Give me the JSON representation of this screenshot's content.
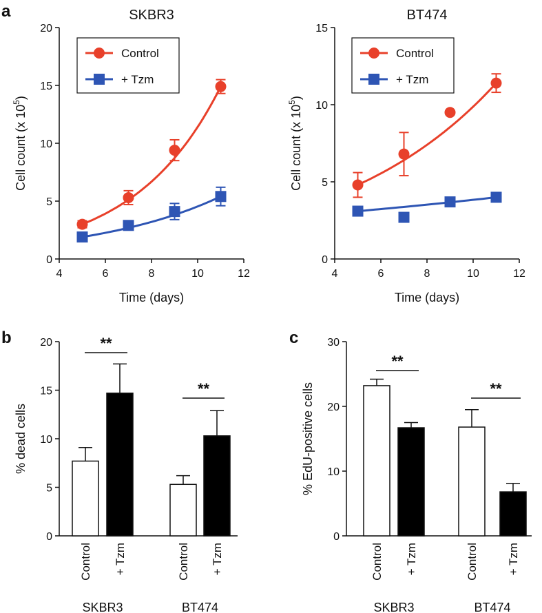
{
  "panel_labels": {
    "a": "a",
    "b": "b",
    "c": "c"
  },
  "colors": {
    "control": "#e8402a",
    "tzm": "#2e55b4",
    "axis": "#111111"
  },
  "chart_data": [
    {
      "id": "a1",
      "type": "line",
      "title": "SKBR3",
      "xlabel": "Time (days)",
      "ylabel": "Cell count (x 10",
      "ylabel_sup": "5",
      "ylabel_end": ")",
      "xlim": [
        4,
        12
      ],
      "ylim": [
        0,
        20
      ],
      "xticks": [
        4,
        6,
        8,
        10,
        12
      ],
      "yticks": [
        0,
        5,
        10,
        15,
        20
      ],
      "series": [
        {
          "name": "Control",
          "marker": "circle",
          "x": [
            5,
            7,
            9,
            11
          ],
          "y": [
            3.0,
            5.3,
            9.4,
            14.9
          ],
          "err": [
            0.3,
            0.6,
            0.9,
            0.6
          ]
        },
        {
          "name": "+ Tzm",
          "marker": "square",
          "x": [
            5,
            7,
            9,
            11
          ],
          "y": [
            1.9,
            2.9,
            4.1,
            5.4
          ],
          "err": [
            0.2,
            0.3,
            0.7,
            0.8
          ]
        }
      ]
    },
    {
      "id": "a2",
      "type": "line",
      "title": "BT474",
      "xlabel": "Time (days)",
      "ylabel": "Cell count (x 10",
      "ylabel_sup": "5",
      "ylabel_end": ")",
      "xlim": [
        4,
        12
      ],
      "ylim": [
        0,
        15
      ],
      "xticks": [
        4,
        6,
        8,
        10,
        12
      ],
      "yticks": [
        0,
        5,
        10,
        15
      ],
      "series": [
        {
          "name": "Control",
          "marker": "circle",
          "x": [
            5,
            7,
            9,
            11
          ],
          "y": [
            4.8,
            6.8,
            9.5,
            11.4
          ],
          "err": [
            0.8,
            1.4,
            0.1,
            0.6
          ]
        },
        {
          "name": "+ Tzm",
          "marker": "square",
          "x": [
            5,
            7,
            9,
            11
          ],
          "y": [
            3.1,
            2.7,
            3.7,
            4.0
          ],
          "err": [
            0.1,
            0.2,
            0.2,
            0.2
          ]
        }
      ]
    },
    {
      "id": "b",
      "type": "bar",
      "ylabel": "% dead cells",
      "ylim": [
        0,
        20
      ],
      "yticks": [
        0,
        5,
        10,
        15,
        20
      ],
      "groups": [
        "SKBR3",
        "BT474"
      ],
      "bar_labels": [
        "Control",
        "+ Tzm"
      ],
      "series": [
        {
          "name": "Control",
          "fill": "white",
          "values": [
            7.7,
            5.3
          ],
          "err": [
            1.4,
            0.9
          ]
        },
        {
          "name": "+ Tzm",
          "fill": "black",
          "values": [
            14.7,
            10.3
          ],
          "err": [
            3.0,
            2.6
          ]
        }
      ],
      "significance": [
        "**",
        "**"
      ]
    },
    {
      "id": "c",
      "type": "bar",
      "ylabel": "% EdU-positive cells",
      "ylim": [
        0,
        30
      ],
      "yticks": [
        0,
        10,
        20,
        30
      ],
      "groups": [
        "SKBR3",
        "BT474"
      ],
      "bar_labels": [
        "Control",
        "+ Tzm"
      ],
      "series": [
        {
          "name": "Control",
          "fill": "white",
          "values": [
            23.2,
            16.8
          ],
          "err": [
            1.0,
            2.7
          ]
        },
        {
          "name": "+ Tzm",
          "fill": "black",
          "values": [
            16.7,
            6.8
          ],
          "err": [
            0.8,
            1.3
          ]
        }
      ],
      "significance": [
        "**",
        "**"
      ]
    }
  ]
}
